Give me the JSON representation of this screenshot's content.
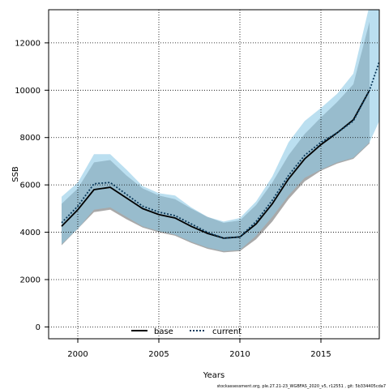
{
  "chart_data": {
    "type": "line",
    "xlabel": "Years",
    "ylabel": "SSB",
    "xlim": [
      1998.2,
      2018.6
    ],
    "ylim": [
      -500,
      13400
    ],
    "x_ticks": [
      2000,
      2005,
      2010,
      2015
    ],
    "y_ticks": [
      0,
      2000,
      4000,
      6000,
      8000,
      10000,
      12000
    ],
    "grid": true,
    "legend_position": "bottom-center",
    "colors": {
      "base_line": "#000000",
      "base_band": "#8c8c8c",
      "current_line": "#0b3a5c",
      "current_band": "#8ecae6"
    },
    "series": [
      {
        "name": "base",
        "style": "solid",
        "x": [
          1999,
          2000,
          2001,
          2002,
          2003,
          2004,
          2005,
          2006,
          2007,
          2008,
          2009,
          2010,
          2011,
          2012,
          2013,
          2014,
          2015,
          2016,
          2017,
          2018
        ],
        "values": [
          4250,
          4950,
          5800,
          5900,
          5450,
          5000,
          4750,
          4600,
          4250,
          3950,
          3750,
          3800,
          4350,
          5200,
          6250,
          7100,
          7700,
          8200,
          8750,
          10000
        ],
        "lower": [
          3450,
          4150,
          4850,
          4950,
          4550,
          4200,
          4000,
          3850,
          3550,
          3300,
          3150,
          3200,
          3700,
          4450,
          5400,
          6150,
          6600,
          6900,
          7100,
          7750
        ],
        "upper": [
          5200,
          5850,
          6950,
          7050,
          6400,
          5850,
          5550,
          5400,
          5000,
          4650,
          4400,
          4500,
          5150,
          6100,
          7250,
          8150,
          8850,
          9500,
          10250,
          12900
        ]
      },
      {
        "name": "current",
        "style": "dotted",
        "x": [
          1999,
          2000,
          2001,
          2002,
          2003,
          2004,
          2005,
          2006,
          2007,
          2008,
          2009,
          2010,
          2011,
          2012,
          2013,
          2014,
          2015,
          2016,
          2017,
          2018,
          2019
        ],
        "values": [
          4400,
          5100,
          6050,
          6100,
          5600,
          5100,
          4850,
          4700,
          4350,
          4000,
          3750,
          3800,
          4450,
          5350,
          6400,
          7250,
          7800,
          8200,
          8700,
          10000,
          12000
        ],
        "lower": [
          3500,
          4150,
          4950,
          5050,
          4650,
          4250,
          4050,
          3900,
          3600,
          3350,
          3200,
          3250,
          3850,
          4650,
          5550,
          6300,
          6650,
          6950,
          7150,
          7800,
          9300
        ],
        "upper": [
          5500,
          6100,
          7300,
          7300,
          6650,
          5950,
          5650,
          5550,
          5050,
          4650,
          4450,
          4600,
          5300,
          6350,
          7800,
          8700,
          9250,
          9850,
          10700,
          13600,
          14800
        ]
      }
    ],
    "footer": "stockassessment.org, ple.27.21-23_WGBFAS_2020_v5, r12551 , git: 5b334405cda7"
  }
}
